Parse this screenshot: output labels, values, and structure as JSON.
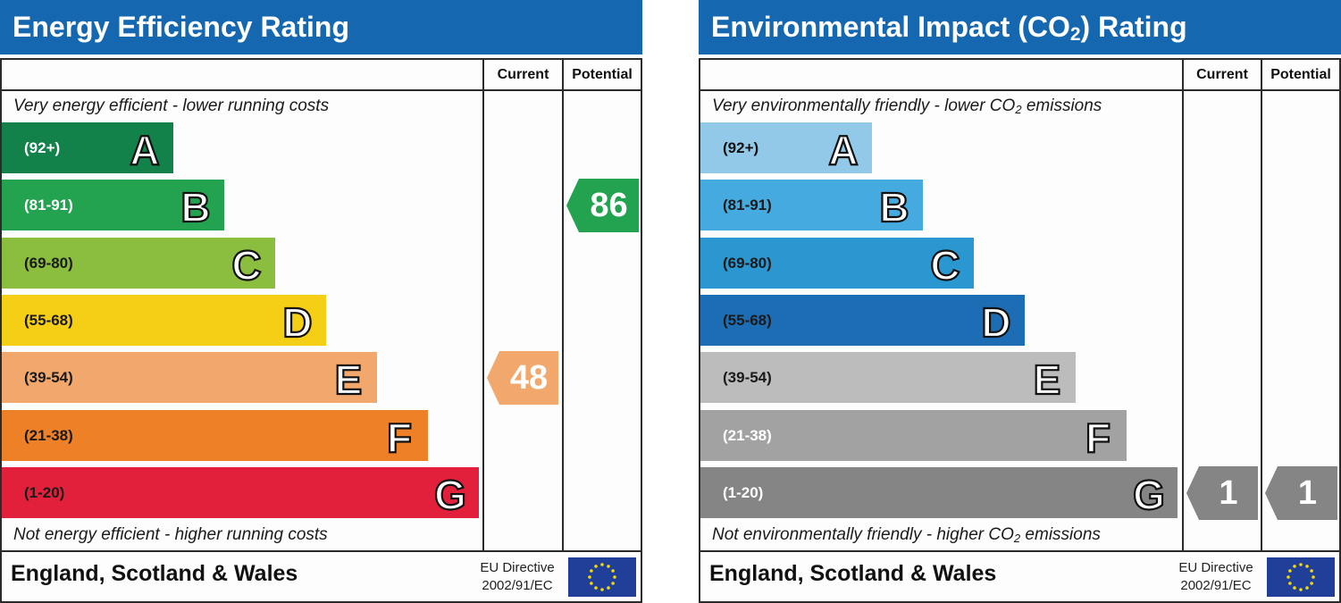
{
  "chart_data": [
    {
      "type": "bar",
      "title": "Energy Efficiency Rating",
      "column_headers": [
        "Current",
        "Potential"
      ],
      "top_note": "Very energy efficient - lower running costs",
      "bottom_note": "Not energy efficient - higher running costs",
      "bands": [
        {
          "letter": "A",
          "range": "(92+)",
          "color": "#12814a",
          "text_color": "#ffffff"
        },
        {
          "letter": "B",
          "range": "(81-91)",
          "color": "#23a350",
          "text_color": "#ffffff"
        },
        {
          "letter": "C",
          "range": "(69-80)",
          "color": "#8bbd3e",
          "text_color": "#1a1a1a"
        },
        {
          "letter": "D",
          "range": "(55-68)",
          "color": "#f5ce16",
          "text_color": "#1a1a1a"
        },
        {
          "letter": "E",
          "range": "(39-54)",
          "color": "#f2a86c",
          "text_color": "#1a1a1a"
        },
        {
          "letter": "F",
          "range": "(21-38)",
          "color": "#ee8027",
          "text_color": "#1a1a1a"
        },
        {
          "letter": "G",
          "range": "(1-20)",
          "color": "#e3203b",
          "text_color": "#1a1a1a"
        }
      ],
      "current": {
        "value": 48,
        "band": "E",
        "color": "#f2a86c"
      },
      "potential": {
        "value": 86,
        "band": "B",
        "color": "#23a350"
      },
      "footer": {
        "country": "England, Scotland & Wales",
        "directive_line1": "EU Directive",
        "directive_line2": "2002/91/EC"
      }
    },
    {
      "type": "bar",
      "title": "Environmental Impact (CO2) Rating",
      "title_parts": [
        "Environmental Impact (CO",
        "2",
        ") Rating"
      ],
      "column_headers": [
        "Current",
        "Potential"
      ],
      "top_note": "Very environmentally friendly - lower CO2 emissions",
      "top_note_parts": [
        "Very environmentally friendly - lower CO",
        "2",
        " emissions"
      ],
      "bottom_note": "Not environmentally friendly - higher CO2 emissions",
      "bottom_note_parts": [
        "Not environmentally friendly - higher CO",
        "2",
        " emissions"
      ],
      "bands": [
        {
          "letter": "A",
          "range": "(92+)",
          "color": "#92c9e8",
          "text_color": "#111111"
        },
        {
          "letter": "B",
          "range": "(81-91)",
          "color": "#44aae0",
          "text_color": "#1a1a1a"
        },
        {
          "letter": "C",
          "range": "(69-80)",
          "color": "#2b97d0",
          "text_color": "#1a1a1a"
        },
        {
          "letter": "D",
          "range": "(55-68)",
          "color": "#1d6db5",
          "text_color": "#1a1a1a"
        },
        {
          "letter": "E",
          "range": "(39-54)",
          "color": "#bcbcbc",
          "text_color": "#1a1a1a"
        },
        {
          "letter": "F",
          "range": "(21-38)",
          "color": "#a2a2a2",
          "text_color": "#ffffff"
        },
        {
          "letter": "G",
          "range": "(1-20)",
          "color": "#858585",
          "text_color": "#ffffff"
        }
      ],
      "current": {
        "value": 1,
        "band": "G",
        "color": "#858585"
      },
      "potential": {
        "value": 1,
        "band": "G",
        "color": "#858585"
      },
      "footer": {
        "country": "England, Scotland & Wales",
        "directive_line1": "EU Directive",
        "directive_line2": "2002/91/EC"
      }
    }
  ]
}
